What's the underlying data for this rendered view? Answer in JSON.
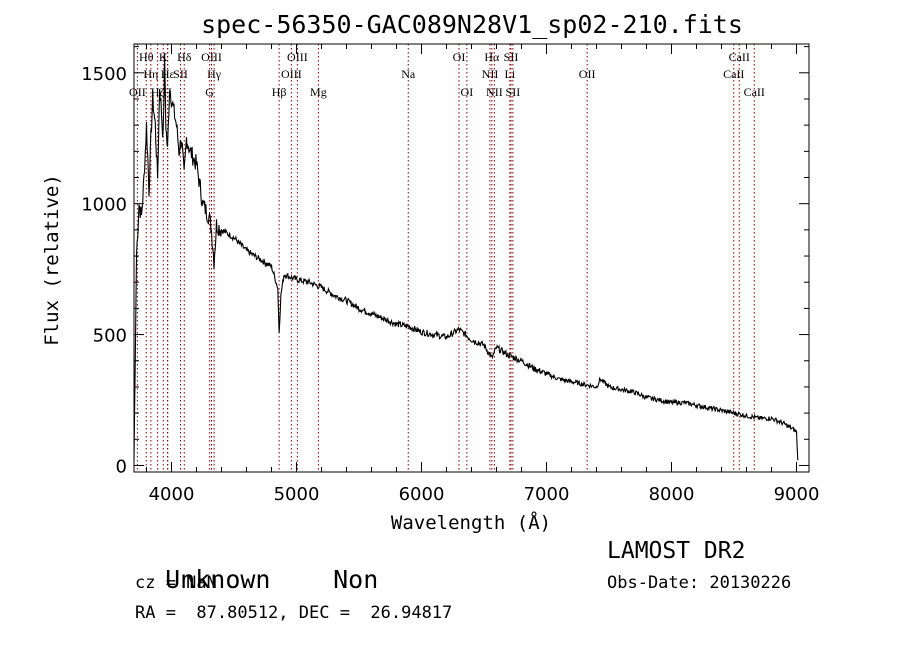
{
  "chart_data": {
    "type": "line",
    "title": "spec-56350-GAC089N28V1_sp02-210.fits",
    "xlabel": "Wavelength (Å)",
    "ylabel": "Flux (relative)",
    "xlim": [
      3700,
      9100
    ],
    "ylim": [
      -25,
      1610
    ],
    "xticks": [
      4000,
      5000,
      6000,
      7000,
      8000,
      9000
    ],
    "yticks": [
      0,
      500,
      1000,
      1500
    ],
    "line_color": "#000000",
    "marker_color": "#8b0000",
    "series": [
      {
        "x": [
          3700,
          3720,
          3740,
          3760,
          3780,
          3800,
          3820,
          3835,
          3850,
          3870,
          3889,
          3905,
          3920,
          3933,
          3945,
          3955,
          3968,
          3985,
          4000,
          4020,
          4040,
          4060,
          4080,
          4101,
          4120,
          4150,
          4200,
          4250,
          4300,
          4320,
          4340,
          4360,
          4400,
          4500,
          4600,
          4700,
          4800,
          4850,
          4861,
          4875,
          4900,
          5000,
          5100,
          5200,
          5300,
          5400,
          5500,
          5600,
          5700,
          5800,
          5900,
          6000,
          6100,
          6200,
          6300,
          6400,
          6500,
          6563,
          6600,
          6700,
          6800,
          6900,
          7000,
          7100,
          7200,
          7300,
          7400,
          7430,
          7500,
          7600,
          7700,
          7800,
          7900,
          8000,
          8100,
          8200,
          8300,
          8400,
          8500,
          8600,
          8700,
          8800,
          8900,
          9000,
          9010
        ],
        "y": [
          20,
          800,
          1000,
          950,
          1100,
          1300,
          1050,
          1250,
          1400,
          1300,
          1100,
          1450,
          1350,
          1250,
          1550,
          1300,
          1200,
          1450,
          1400,
          1350,
          1300,
          1200,
          1250,
          1100,
          1250,
          1200,
          1150,
          1000,
          950,
          900,
          780,
          920,
          900,
          870,
          820,
          790,
          760,
          680,
          510,
          650,
          730,
          710,
          700,
          680,
          650,
          630,
          600,
          580,
          560,
          540,
          530,
          510,
          500,
          490,
          520,
          480,
          460,
          410,
          450,
          420,
          400,
          370,
          350,
          330,
          320,
          310,
          300,
          330,
          300,
          290,
          280,
          260,
          250,
          240,
          240,
          230,
          220,
          210,
          200,
          190,
          180,
          180,
          160,
          130,
          20
        ]
      }
    ],
    "lines": [
      {
        "name": "OII",
        "x": 3727,
        "label_row": 3
      },
      {
        "name": "Hθ",
        "x": 3798,
        "label_row": 1
      },
      {
        "name": "Hη",
        "x": 3835,
        "label_row": 2
      },
      {
        "name": "K",
        "x": 3934,
        "label_row": 1
      },
      {
        "name": "Hζ",
        "x": 3889,
        "label_row": 3
      },
      {
        "name": "H",
        "x": 3968,
        "label_row": 3
      },
      {
        "name": "Hε",
        "x": 3970,
        "label_row": 2
      },
      {
        "name": "SII",
        "x": 4072,
        "label_row": 2
      },
      {
        "name": "Hδ",
        "x": 4102,
        "label_row": 1
      },
      {
        "name": "OIII",
        "x": 4320,
        "label_row": 1
      },
      {
        "name": "Hγ",
        "x": 4341,
        "label_row": 2
      },
      {
        "name": "G",
        "x": 4305,
        "label_row": 3
      },
      {
        "name": "Hβ",
        "x": 4861,
        "label_row": 3
      },
      {
        "name": "OIII",
        "x": 4959,
        "label_row": 2
      },
      {
        "name": "OIII",
        "x": 5007,
        "label_row": 1
      },
      {
        "name": "Mg",
        "x": 5175,
        "label_row": 3
      },
      {
        "name": "Na",
        "x": 5894,
        "label_row": 2
      },
      {
        "name": "OI",
        "x": 6300,
        "label_row": 1
      },
      {
        "name": "OI",
        "x": 6363,
        "label_row": 3
      },
      {
        "name": "NII",
        "x": 6548,
        "label_row": 2
      },
      {
        "name": "Hα",
        "x": 6563,
        "label_row": 1
      },
      {
        "name": "NII",
        "x": 6583,
        "label_row": 3
      },
      {
        "name": "Li",
        "x": 6707,
        "label_row": 2
      },
      {
        "name": "SII",
        "x": 6716,
        "label_row": 1
      },
      {
        "name": "SII",
        "x": 6731,
        "label_row": 3
      },
      {
        "name": "OII",
        "x": 7325,
        "label_row": 2
      },
      {
        "name": "CaII",
        "x": 8498,
        "label_row": 2
      },
      {
        "name": "CaII",
        "x": 8542,
        "label_row": 1
      },
      {
        "name": "CaII",
        "x": 8662,
        "label_row": 3
      }
    ]
  },
  "info": {
    "class": "Unknown",
    "subclass": "Non",
    "cz": "cz = NaN",
    "coords": "RA =  87.80512, DEC =  26.94817",
    "survey": "LAMOST DR2",
    "obs_date": "Obs-Date: 20130226"
  }
}
